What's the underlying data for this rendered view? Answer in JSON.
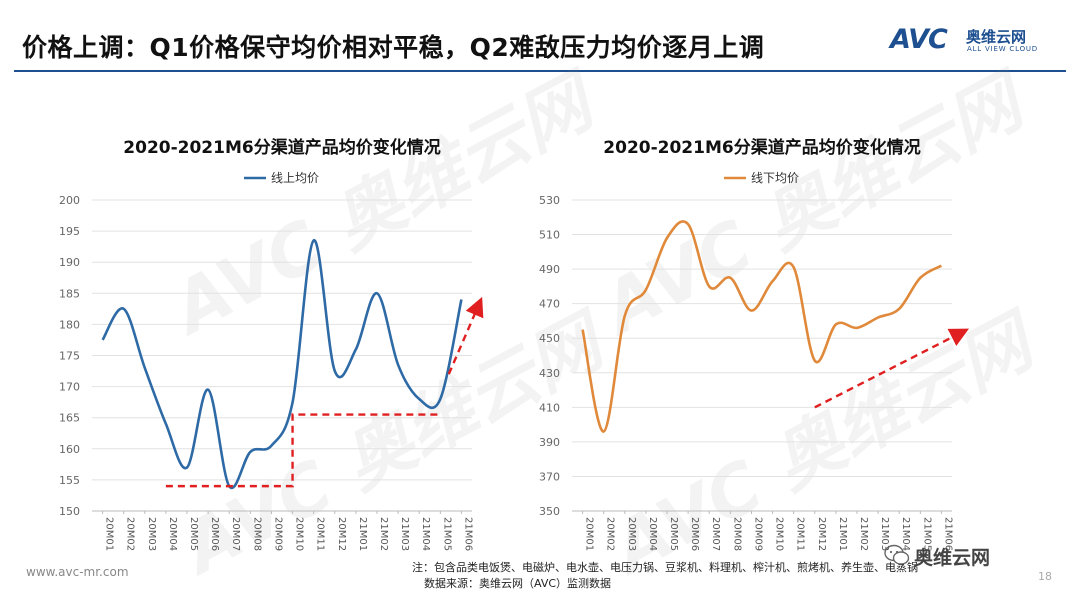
{
  "header": {
    "title": "价格上调：Q1价格保守均价相对平稳，Q2难敌压力均价逐月上调",
    "logo_text": "AVC",
    "logo_cn": "奥维云网",
    "logo_en": "ALL VIEW CLOUD",
    "accent_color": "#1d4f91"
  },
  "chart_data": [
    {
      "type": "line",
      "title": "2020-2021M6分渠道产品均价变化情况",
      "legend": "线上均价",
      "color": "#2e6aa5",
      "categories": [
        "20M01",
        "20M02",
        "20M03",
        "20M04",
        "20M05",
        "20M06",
        "20M07",
        "20M08",
        "20M09",
        "20M10",
        "20M11",
        "20M12",
        "21M01",
        "21M02",
        "21M03",
        "21M04",
        "21M05",
        "21M06"
      ],
      "values": [
        177.5,
        182.5,
        173,
        164,
        157,
        169.5,
        154,
        159.5,
        160.5,
        167.5,
        193.5,
        172.5,
        176,
        185,
        173.5,
        168,
        168,
        184
      ],
      "ylim": [
        150,
        200
      ],
      "yticks": [
        150,
        155,
        160,
        165,
        170,
        175,
        180,
        185,
        190,
        195,
        200
      ],
      "annotations": [
        {
          "type": "step",
          "color": "#e02020",
          "from_index": 3,
          "step_index": 9,
          "to_index": 16,
          "low": 154,
          "high": 165.5
        },
        {
          "type": "arrow",
          "color": "#e02020",
          "x0_index": 16.4,
          "y0": 172,
          "x1_index": 17.8,
          "y1": 183
        }
      ]
    },
    {
      "type": "line",
      "title": "2020-2021M6分渠道产品均价变化情况",
      "legend": "线下均价",
      "color": "#e0893a",
      "categories": [
        "20M01",
        "20M02",
        "20M03",
        "20M04",
        "20M05",
        "20M06",
        "20M07",
        "20M08",
        "20M09",
        "20M10",
        "20M11",
        "20M12",
        "21M01",
        "21M02",
        "21M03",
        "21M04",
        "21M05",
        "21M06"
      ],
      "values": [
        455,
        396,
        463,
        478,
        508,
        516,
        480,
        485,
        466,
        483,
        491,
        437,
        458,
        456,
        462,
        467,
        485,
        492
      ],
      "ylim": [
        350,
        530
      ],
      "yticks": [
        350,
        370,
        390,
        410,
        430,
        450,
        470,
        490,
        510,
        530
      ],
      "annotations": [
        {
          "type": "arrow",
          "color": "#e02020",
          "x0_index": 11,
          "y0": 410,
          "x1_index": 17.9,
          "y1": 453
        }
      ]
    }
  ],
  "footer": {
    "url": "www.avc-mr.com",
    "note": "注：包含品类电饭煲、电磁炉、电水壶、电压力锅、豆浆机、料理机、榨汁机、煎烤机、养生壶、电蒸锅",
    "source": "数据来源：奥维云网（AVC）监测数据",
    "wechat_brand": "奥维云网",
    "page": "18"
  }
}
